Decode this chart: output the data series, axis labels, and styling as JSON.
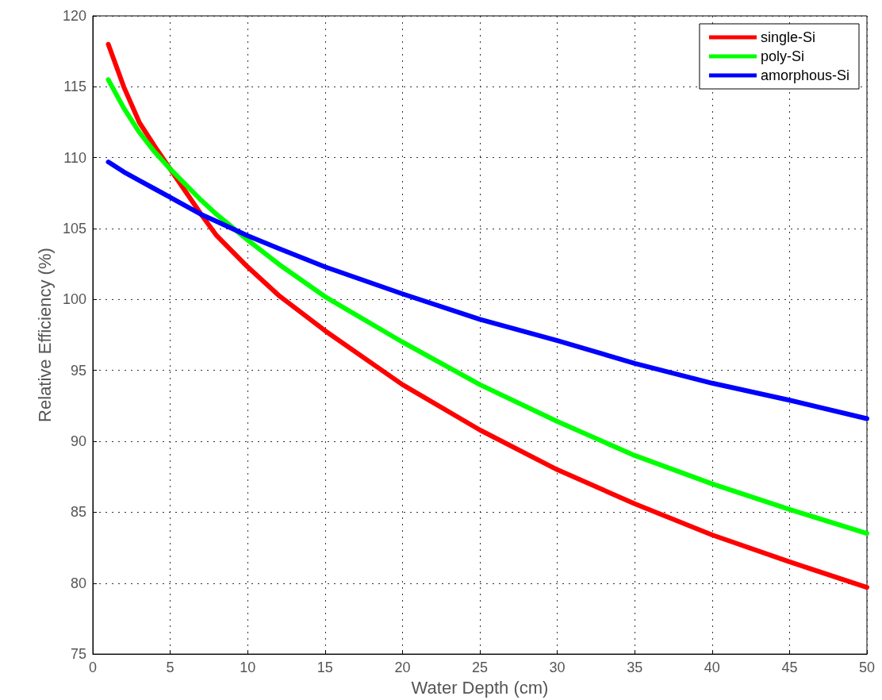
{
  "chart_data": {
    "type": "line",
    "xlabel": "Water Depth (cm)",
    "ylabel": "Relative Efficiency (%)",
    "xlim": [
      0,
      50
    ],
    "xticks": [
      0,
      5,
      10,
      15,
      20,
      25,
      30,
      35,
      40,
      45,
      50
    ],
    "ylim": [
      75,
      120
    ],
    "yticks": [
      75,
      80,
      85,
      90,
      95,
      100,
      105,
      110,
      115,
      120
    ],
    "grid": true,
    "legend": "top right",
    "line_style": "solid",
    "marker": "none",
    "x": [
      1,
      2,
      3,
      4,
      5,
      7,
      8,
      10,
      12,
      15,
      20,
      25,
      30,
      35,
      40,
      45,
      50
    ],
    "series": [
      {
        "name": "single-Si",
        "color": "#ff0000",
        "values": [
          118,
          115,
          112.5,
          110.8,
          109.2,
          106,
          104.5,
          102.3,
          100.3,
          97.8,
          94,
          90.8,
          88,
          85.6,
          83.4,
          81.5,
          79.7
        ]
      },
      {
        "name": "poly-Si",
        "color": "#00ff00",
        "values": [
          115.5,
          113.5,
          111.8,
          110.4,
          109.2,
          107,
          106,
          104.2,
          102.5,
          100.2,
          97,
          94,
          91.4,
          89,
          87,
          85.2,
          83.5
        ]
      },
      {
        "name": "amorphous-Si",
        "color": "#0000ff",
        "values": [
          109.7,
          109,
          108.4,
          107.8,
          107.2,
          106,
          105.5,
          104.5,
          103.6,
          102.3,
          100.4,
          98.6,
          97.1,
          95.5,
          94.1,
          92.9,
          91.6
        ]
      }
    ]
  }
}
